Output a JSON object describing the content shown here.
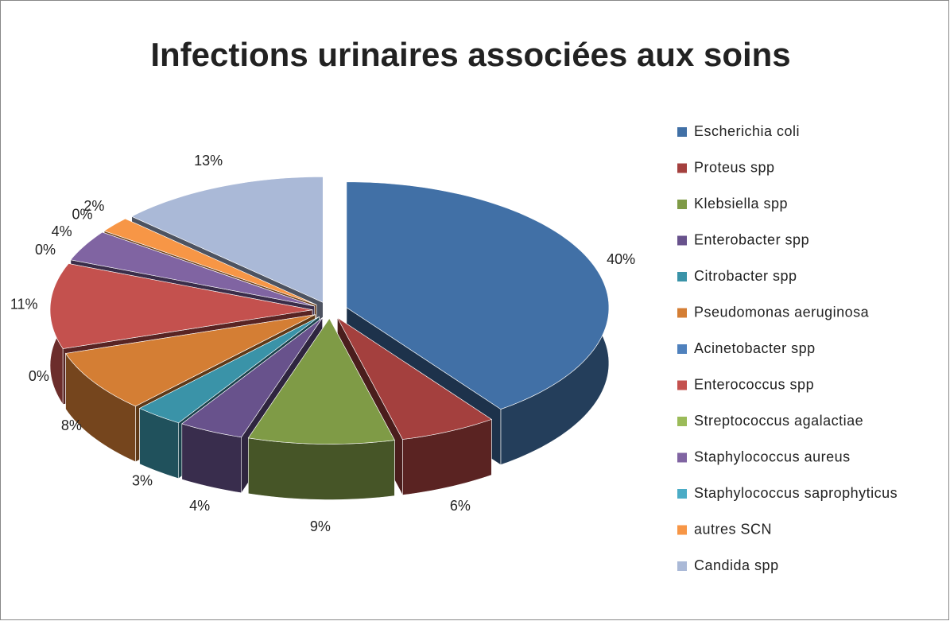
{
  "chart_data": {
    "type": "pie3d",
    "title": "Infections urinaires associées aux soins",
    "categories": [
      "Escherichia coli",
      "Proteus spp",
      "Klebsiella spp",
      "Enterobacter spp",
      "Citrobacter spp",
      "Pseudomonas aeruginosa",
      "Acinetobacter spp",
      "Enterococcus spp",
      "Streptococcus agalactiae",
      "Staphylococcus aureus",
      "Staphylococcus saprophyticus",
      "autres SCN",
      "Candida spp"
    ],
    "values": [
      40,
      6,
      9,
      4,
      3,
      8,
      0,
      11,
      0,
      4,
      0,
      2,
      13
    ],
    "value_labels": [
      "40%",
      "6%",
      "9%",
      "4%",
      "3%",
      "8%",
      "0%",
      "11%",
      "0%",
      "4%",
      "0%",
      "2%",
      "13%"
    ],
    "colors": [
      "#4170A6",
      "#A4403E",
      "#7F9B46",
      "#68528C",
      "#3A93A8",
      "#D47E34",
      "#4F81BD",
      "#C4514E",
      "#9BBB59",
      "#8064A2",
      "#4BACC6",
      "#F79646",
      "#AAB9D7"
    ],
    "legend": "right"
  }
}
